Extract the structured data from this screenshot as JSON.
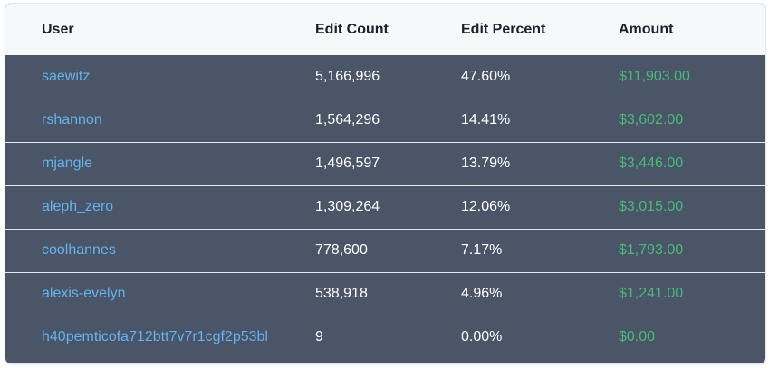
{
  "table": {
    "headers": {
      "user": "User",
      "edit_count": "Edit Count",
      "edit_percent": "Edit Percent",
      "amount": "Amount"
    },
    "rows": [
      {
        "user": "saewitz",
        "edit_count": "5,166,996",
        "edit_percent": "47.60%",
        "amount": "$11,903.00"
      },
      {
        "user": "rshannon",
        "edit_count": "1,564,296",
        "edit_percent": "14.41%",
        "amount": "$3,602.00"
      },
      {
        "user": "mjangle",
        "edit_count": "1,496,597",
        "edit_percent": "13.79%",
        "amount": "$3,446.00"
      },
      {
        "user": "aleph_zero",
        "edit_count": "1,309,264",
        "edit_percent": "12.06%",
        "amount": "$3,015.00"
      },
      {
        "user": "coolhannes",
        "edit_count": "778,600",
        "edit_percent": "7.17%",
        "amount": "$1,793.00"
      },
      {
        "user": "alexis-evelyn",
        "edit_count": "538,918",
        "edit_percent": "4.96%",
        "amount": "$1,241.00"
      },
      {
        "user": "h40pemticofa712btt7v7r1cgf2p53bl",
        "edit_count": "9",
        "edit_percent": "0.00%",
        "amount": "$0.00"
      }
    ]
  },
  "colors": {
    "header_bg": "#f7f8fa",
    "row_bg": "#4a5568",
    "link": "#63b3ed",
    "amount": "#48bb78"
  }
}
